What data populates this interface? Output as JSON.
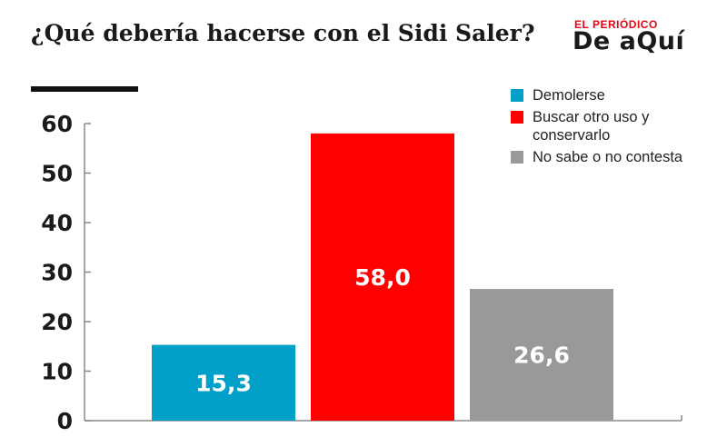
{
  "header": {
    "title": "¿Qué debería hacerse con el Sidi Saler?",
    "logo_top": "EL PERIÓDICO",
    "logo_main": "De aQuí"
  },
  "colors": {
    "demolerse": "#00a0c8",
    "buscar": "#ff0000",
    "nosabe": "#999999",
    "axis": "#888888",
    "text": "#1a1a1a"
  },
  "chart_data": {
    "type": "bar",
    "title": "¿Qué debería hacerse con el Sidi Saler?",
    "categories": [
      "Demolerse",
      "Buscar otro uso y conservarlo",
      "No sabe o no contesta"
    ],
    "values": [
      15.3,
      58.0,
      26.6
    ],
    "value_labels": [
      "15,3",
      "58,0",
      "26,6"
    ],
    "colors": [
      "#00a0c8",
      "#ff0000",
      "#999999"
    ],
    "ylim": [
      0,
      60
    ],
    "yticks": [
      0,
      10,
      20,
      30,
      40,
      50,
      60
    ],
    "xlabel": "",
    "ylabel": "",
    "grid": false,
    "legend_position": "top-right"
  },
  "legend": [
    {
      "label": "Demolerse",
      "color": "#00a0c8"
    },
    {
      "label": "Buscar otro uso y conservarlo",
      "color": "#ff0000"
    },
    {
      "label": "No sabe o no contesta",
      "color": "#999999"
    }
  ]
}
